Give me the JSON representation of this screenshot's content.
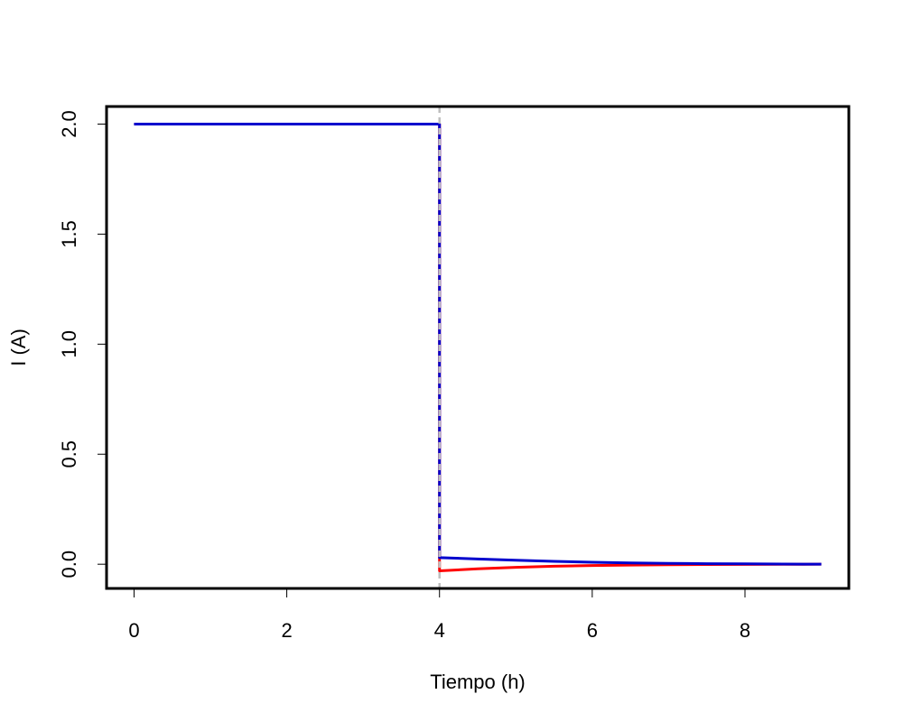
{
  "chart_data": {
    "type": "line",
    "title": "",
    "xlabel": "Tiempo (h)",
    "ylabel": "I (A)",
    "xlim": [
      -0.36,
      9.36
    ],
    "ylim": [
      -0.11,
      2.08
    ],
    "x_ticks": [
      "0",
      "2",
      "4",
      "6",
      "8"
    ],
    "y_ticks": [
      "0.0",
      "0.5",
      "1.0",
      "1.5",
      "2.0"
    ],
    "grid": false,
    "legend": "none",
    "vertical_line": {
      "x": 4,
      "color": "#bebebe",
      "style": "dashed"
    },
    "series": [
      {
        "color": "#ff0000",
        "x": [
          0,
          4,
          4,
          4.5,
          5,
          5.5,
          6,
          6.5,
          7,
          7.5,
          8,
          8.5,
          9
        ],
        "y": [
          2.0,
          2.0,
          -0.03,
          -0.021,
          -0.014,
          -0.009,
          -0.006,
          -0.004,
          -0.0025,
          -0.0015,
          -0.0008,
          -0.0004,
          0.0
        ]
      },
      {
        "color": "#0000cd",
        "x": [
          0,
          4,
          4,
          4.5,
          5,
          5.5,
          6,
          6.5,
          7,
          7.5,
          8,
          8.5,
          9
        ],
        "y": [
          2.0,
          2.0,
          0.03,
          0.024,
          0.018,
          0.013,
          0.009,
          0.006,
          0.004,
          0.0025,
          0.0015,
          0.0007,
          0.0
        ]
      }
    ]
  }
}
